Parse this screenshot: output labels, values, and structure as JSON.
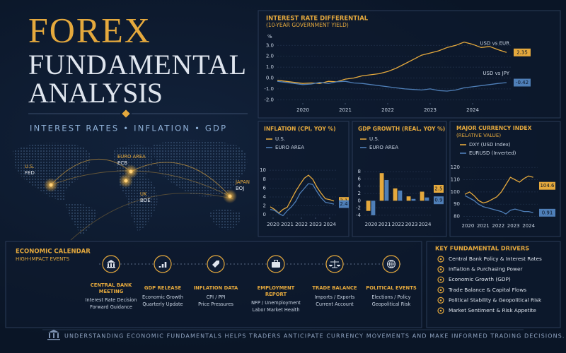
{
  "header": {
    "title_line1": "FOREX",
    "title_line2": "FUNDAMENTAL",
    "title_line3": "ANALYSIS",
    "subtitle": "INTEREST RATES • INFLATION • GDP"
  },
  "map": {
    "markers": [
      {
        "region": "U.S.",
        "bank": "FED"
      },
      {
        "region": "EURO AREA",
        "bank": "ECB"
      },
      {
        "region": "UK",
        "bank": "BOE"
      },
      {
        "region": "JAPAN",
        "bank": "BOJ"
      }
    ]
  },
  "chart_data": [
    {
      "type": "line",
      "title": "INTEREST RATE DIFFERENTIAL",
      "subtitle": "(10-YEAR GOVERNMENT YIELD)",
      "y_label": "%",
      "x": [
        2019.4,
        2019.6,
        2019.8,
        2020.0,
        2020.2,
        2020.4,
        2020.6,
        2020.8,
        2021.0,
        2021.2,
        2021.4,
        2021.6,
        2021.8,
        2022.0,
        2022.2,
        2022.4,
        2022.6,
        2022.8,
        2023.0,
        2023.2,
        2023.4,
        2023.6,
        2023.8,
        2024.0,
        2024.2,
        2024.4,
        2024.6,
        2024.8
      ],
      "series": [
        {
          "name": "USD vs EUR",
          "color": "#e5a93d",
          "values": [
            -0.2,
            -0.3,
            -0.4,
            -0.5,
            -0.45,
            -0.5,
            -0.3,
            -0.35,
            -0.1,
            0.0,
            0.2,
            0.3,
            0.4,
            0.6,
            0.9,
            1.3,
            1.7,
            2.1,
            2.3,
            2.5,
            2.8,
            3.0,
            3.3,
            3.1,
            2.8,
            2.9,
            2.6,
            2.35
          ]
        },
        {
          "name": "USD vs JPY",
          "color": "#4f7fb8",
          "values": [
            -0.3,
            -0.4,
            -0.5,
            -0.6,
            -0.55,
            -0.4,
            -0.5,
            -0.35,
            -0.3,
            -0.45,
            -0.5,
            -0.6,
            -0.7,
            -0.8,
            -0.9,
            -1.0,
            -1.05,
            -1.1,
            -1.0,
            -1.15,
            -1.2,
            -1.1,
            -0.9,
            -0.8,
            -0.7,
            -0.6,
            -0.5,
            -0.42
          ]
        }
      ],
      "xlim": [
        2019.4,
        2024.9
      ],
      "xticks": [
        2020,
        2021,
        2022,
        2023,
        2024
      ],
      "ylim": [
        -2.3,
        3.6
      ],
      "yticks": [
        {
          "value": 3,
          "label": "3.0"
        },
        {
          "value": 2,
          "label": "2.0"
        },
        {
          "value": 1,
          "label": "1.0"
        },
        {
          "value": 0,
          "label": "0.0"
        },
        {
          "value": -1,
          "label": "-1.0"
        },
        {
          "value": -2,
          "label": "-2.0"
        }
      ],
      "grid": true
    },
    {
      "type": "line",
      "title": "INFLATION (CPI, YOY %)",
      "x": [
        2019.8,
        2020.1,
        2020.4,
        2020.7,
        2021.0,
        2021.3,
        2021.6,
        2021.9,
        2022.2,
        2022.5,
        2022.8,
        2023.1,
        2023.4,
        2023.7,
        2024.0,
        2024.3
      ],
      "series": [
        {
          "name": "U.S.",
          "color": "#e5a93d",
          "values": [
            1.8,
            1.2,
            0.4,
            1.2,
            1.7,
            3.5,
            5.3,
            6.8,
            8.2,
            8.9,
            8.0,
            6.2,
            4.8,
            3.6,
            3.4,
            3.1
          ]
        },
        {
          "name": "EURO AREA",
          "color": "#4f7fb8",
          "values": [
            1.2,
            1.0,
            0.3,
            -0.2,
            0.9,
            1.8,
            3.0,
            4.8,
            5.9,
            7.0,
            6.8,
            5.2,
            3.8,
            2.8,
            2.6,
            2.4
          ]
        }
      ],
      "xlim": [
        2019.75,
        2024.5
      ],
      "xticks": [
        2020,
        2021,
        2022,
        2023,
        2024
      ],
      "ylim": [
        -0.6,
        10.5
      ],
      "yticks": [
        10,
        8,
        6,
        4,
        2,
        0
      ],
      "grid": true
    },
    {
      "type": "bar",
      "title": "GDP GROWTH (REAL, YOY %)",
      "categories": [
        "2020",
        "2021",
        "2022",
        "2023",
        "2024"
      ],
      "series": [
        {
          "name": "U.S.",
          "color": "#e5a93d",
          "values": [
            -2.8,
            7.6,
            3.4,
            1.2,
            2.5
          ]
        },
        {
          "name": "EURO AREA",
          "color": "#4f7fb8",
          "values": [
            -4.0,
            5.7,
            2.8,
            0.5,
            0.9
          ]
        }
      ],
      "ylim": [
        -4.6,
        9
      ],
      "yticks": [
        8,
        6,
        4,
        2,
        0,
        -2,
        -4
      ],
      "grid": true
    },
    {
      "type": "line",
      "title": "MAJOR CURRENCY INDEX",
      "subtitle": "(RELATIVE VALUE)",
      "x": [
        2019.8,
        2020.1,
        2020.4,
        2020.7,
        2021.0,
        2021.3,
        2021.6,
        2021.9,
        2022.2,
        2022.5,
        2022.8,
        2023.1,
        2023.4,
        2023.7,
        2024.0,
        2024.3
      ],
      "series": [
        {
          "name": "DXY (USD Index)",
          "color": "#e5a93d",
          "values": [
            98,
            100,
            97,
            93,
            91,
            92,
            94,
            96,
            100,
            106,
            112,
            110,
            108,
            111,
            113,
            112
          ],
          "end_value": 104.6
        },
        {
          "name": "EURUSD (Inverted)",
          "color": "#4f7fb8",
          "values": [
            97,
            95,
            93,
            90,
            88,
            87,
            86,
            85,
            84,
            82,
            85,
            86,
            85,
            84,
            84,
            83
          ],
          "end_value": 0.91
        }
      ],
      "xlim": [
        2019.7,
        2024.6
      ],
      "xticks": [
        2020,
        2021,
        2022,
        2023,
        2024
      ],
      "ylim": [
        78,
        123
      ],
      "yticks": [
        120,
        110,
        100,
        90,
        80
      ],
      "grid": true
    }
  ],
  "calendar": {
    "title": "ECONOMIC CALENDAR",
    "subtitle": "HIGH-IMPACT EVENTS",
    "events": [
      {
        "title": "CENTRAL BANK MEETING",
        "lines": [
          "Interest Rate Decision",
          "Forward Guidance"
        ]
      },
      {
        "title": "GDP RELEASE",
        "lines": [
          "Economic Growth",
          "Quarterly Update"
        ]
      },
      {
        "title": "INFLATION DATA",
        "lines": [
          "CPI / PPI",
          "Price Pressures"
        ]
      },
      {
        "title": "EMPLOYMENT REPORT",
        "lines": [
          "NFP / Unemployment",
          "Labor Market Health"
        ]
      },
      {
        "title": "TRADE BALANCE",
        "lines": [
          "Imports / Exports",
          "Current Account"
        ]
      },
      {
        "title": "POLITICAL EVENTS",
        "lines": [
          "Elections / Policy",
          "Geopolitical Risk"
        ]
      }
    ]
  },
  "drivers": {
    "title": "KEY FUNDAMENTAL DRIVERS",
    "items": [
      "Central Bank Policy & Interest Rates",
      "Inflation & Purchasing Power",
      "Economic Growth (GDP)",
      "Trade Balance & Capital Flows",
      "Political Stability & Geopolitical Risk",
      "Market Sentiment & Risk Appetite"
    ]
  },
  "footer": {
    "text": "UNDERSTANDING ECONOMIC FUNDAMENTALS HELPS TRADERS ANTICIPATE CURRENCY MOVEMENTS AND MAKE INFORMED TRADING DECISIONS."
  }
}
